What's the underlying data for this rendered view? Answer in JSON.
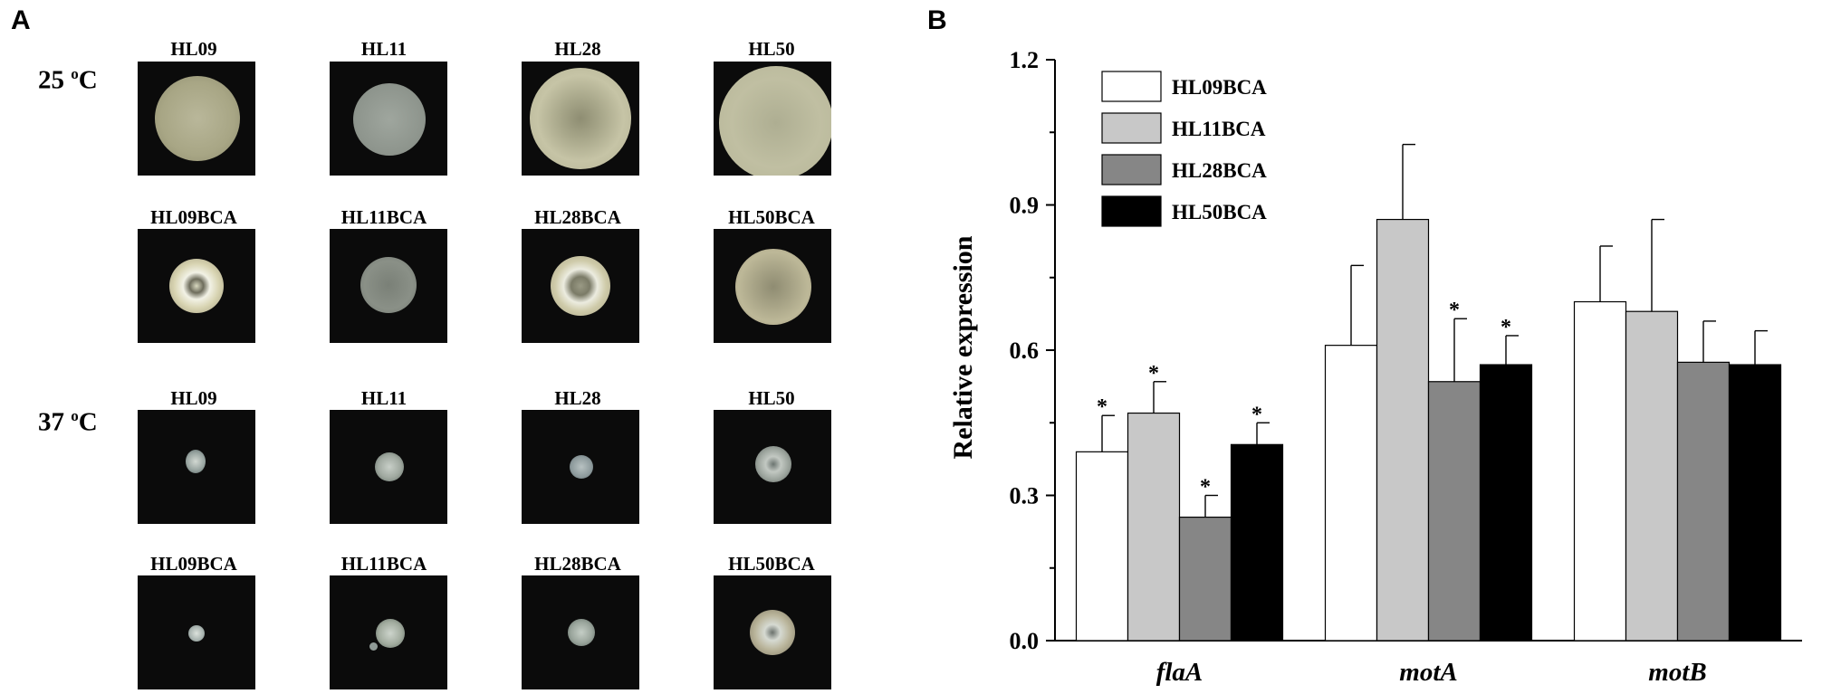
{
  "panel_a": {
    "letter": "A",
    "temperatures": [
      {
        "label": "25 ",
        "sup": "o",
        "unit": "C"
      },
      {
        "label": "37 ",
        "sup": "o",
        "unit": "C"
      }
    ],
    "rows": [
      [
        "HL09",
        "HL11",
        "HL28",
        "HL50"
      ],
      [
        "HL09BCA",
        "HL11BCA",
        "HL28BCA",
        "HL50BCA"
      ],
      [
        "HL09",
        "HL11",
        "HL28",
        "HL50"
      ],
      [
        "HL09BCA",
        "HL11BCA",
        "HL28BCA",
        "HL50BCA"
      ]
    ]
  },
  "panel_b": {
    "letter": "B"
  },
  "chart_data": {
    "type": "bar",
    "title": "",
    "xlabel": "",
    "ylabel": "Relative expression",
    "ylim": [
      0,
      1.2
    ],
    "yticks": [
      0.0,
      0.3,
      0.6,
      0.9,
      1.2
    ],
    "ytick_labels": [
      "0.0",
      "0.3",
      "0.6",
      "0.9",
      "1.2"
    ],
    "categories": [
      "flaA",
      "motA",
      "motB"
    ],
    "legend_position": "top-left",
    "series": [
      {
        "name": "HL09BCA",
        "color": "#ffffff",
        "values": [
          0.39,
          0.61,
          0.7
        ],
        "errors": [
          0.075,
          0.165,
          0.115
        ],
        "significant": [
          true,
          false,
          false
        ]
      },
      {
        "name": "HL11BCA",
        "color": "#c8c8c8",
        "values": [
          0.47,
          0.87,
          0.68
        ],
        "errors": [
          0.065,
          0.155,
          0.19
        ],
        "significant": [
          true,
          false,
          false
        ]
      },
      {
        "name": "HL28BCA",
        "color": "#868686",
        "values": [
          0.255,
          0.535,
          0.575
        ],
        "errors": [
          0.045,
          0.13,
          0.085
        ],
        "significant": [
          true,
          true,
          false
        ]
      },
      {
        "name": "HL50BCA",
        "color": "#000000",
        "values": [
          0.405,
          0.57,
          0.57
        ],
        "errors": [
          0.045,
          0.06,
          0.07
        ],
        "significant": [
          true,
          true,
          false
        ]
      }
    ],
    "significance_mark": "*"
  }
}
